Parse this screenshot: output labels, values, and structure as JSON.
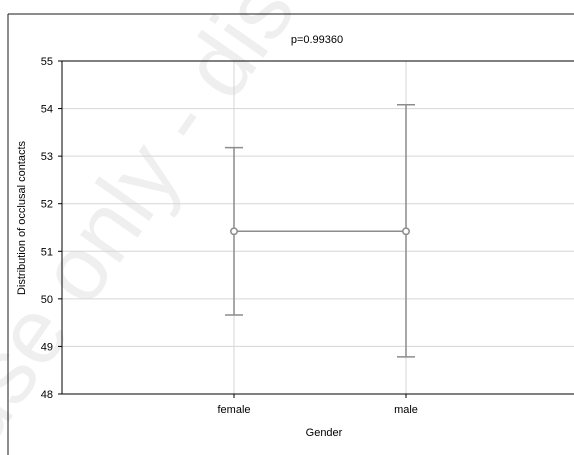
{
  "watermark": "use only - dist",
  "chart_data": {
    "type": "scatter",
    "title": "p=0.99360",
    "xlabel": "Gender",
    "ylabel": "Distribution of occlusal contacts",
    "categories": [
      "female",
      "male"
    ],
    "series": [
      {
        "mean": [
          51.42,
          51.42
        ],
        "upper": [
          53.18,
          54.08
        ],
        "lower": [
          49.66,
          48.78
        ]
      }
    ],
    "ylim": [
      48,
      55
    ],
    "yticks": [
      "48",
      "49",
      "50",
      "51",
      "52",
      "53",
      "54",
      "55"
    ],
    "grid": true,
    "colors": {
      "series": "#8c8c8c",
      "grid": "#d6d6d6",
      "axis": "#000000",
      "frame": "#1a1a1a"
    }
  }
}
